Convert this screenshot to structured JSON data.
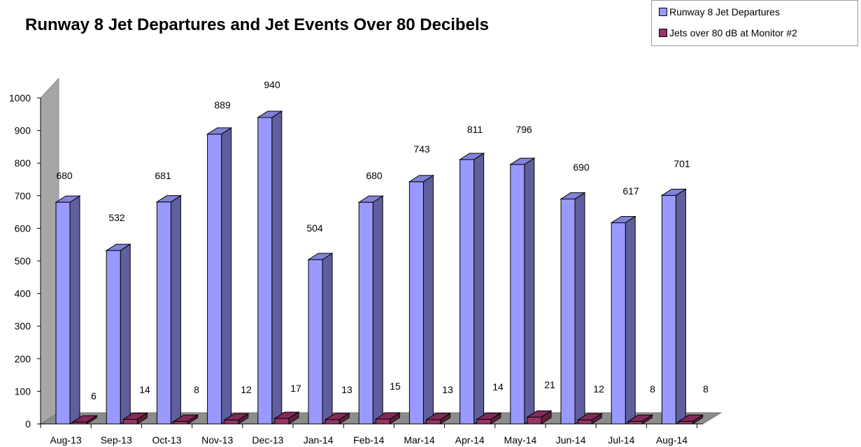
{
  "chart_data": {
    "type": "bar",
    "title": "Runway 8 Jet Departures and Jet Events Over 80 Decibels",
    "categories": [
      "Aug-13",
      "Sep-13",
      "Oct-13",
      "Nov-13",
      "Dec-13",
      "Jan-14",
      "Feb-14",
      "Mar-14",
      "Apr-14",
      "May-14",
      "Jun-14",
      "Jul-14",
      "Aug-14"
    ],
    "series": [
      {
        "name": "Runway 8 Jet Departures",
        "values": [
          680,
          532,
          681,
          889,
          940,
          504,
          680,
          743,
          811,
          796,
          690,
          617,
          701
        ],
        "color": "#9999ff"
      },
      {
        "name": "Jets over 80 dB at Monitor #2",
        "values": [
          6,
          14,
          8,
          12,
          17,
          13,
          15,
          13,
          14,
          21,
          12,
          8,
          8
        ],
        "color": "#993366"
      }
    ],
    "ylim": [
      0,
      1000
    ],
    "yticks": [
      0,
      100,
      200,
      300,
      400,
      500,
      600,
      700,
      800,
      900,
      1000
    ],
    "xlabel": "",
    "ylabel": "",
    "legend_position": "top-right",
    "grid": false,
    "style": "3d-clustered-column"
  }
}
